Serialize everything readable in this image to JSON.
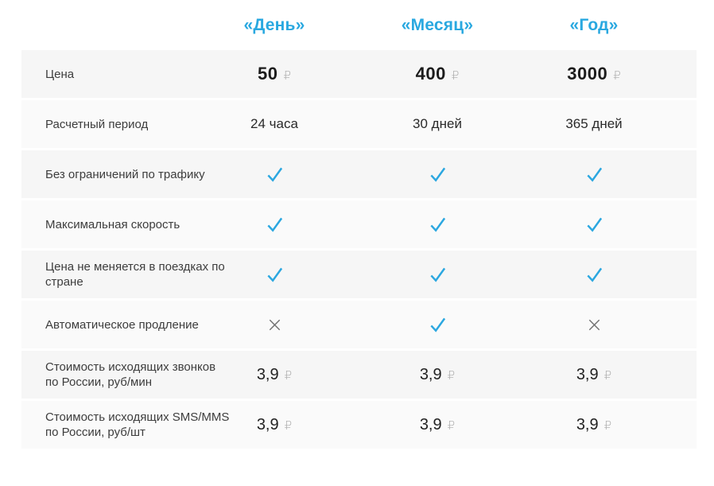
{
  "plans": {
    "columns": [
      {
        "label": "«День»"
      },
      {
        "label": "«Месяц»"
      },
      {
        "label": "«Год»"
      }
    ],
    "currency_symbol": "₽",
    "rows": [
      {
        "label": "Цена",
        "type": "price",
        "values": [
          "50",
          "400",
          "3000"
        ]
      },
      {
        "label": "Расчетный период",
        "type": "text",
        "values": [
          "24 часа",
          "30 дней",
          "365 дней"
        ]
      },
      {
        "label": "Без ограничений по трафику",
        "type": "bool",
        "values": [
          true,
          true,
          true
        ]
      },
      {
        "label": "Максимальная скорость",
        "type": "bool",
        "values": [
          true,
          true,
          true
        ]
      },
      {
        "label": "Цена не меняется в поездках по стране",
        "type": "bool",
        "values": [
          true,
          true,
          true
        ]
      },
      {
        "label": "Автоматическое продление",
        "type": "bool",
        "values": [
          false,
          true,
          false
        ]
      },
      {
        "label": "Стоимость исходящих звонков по России, руб/мин",
        "type": "fee",
        "values": [
          "3,9",
          "3,9",
          "3,9"
        ]
      },
      {
        "label": "Стоимость исходящих SMS/MMS по России, руб/шт",
        "type": "fee",
        "values": [
          "3,9",
          "3,9",
          "3,9"
        ]
      }
    ],
    "colors": {
      "accent": "#29a8e0",
      "check": "#2ba7e0",
      "cross": "#707070",
      "row_bg_a": "#f6f6f6",
      "row_bg_b": "#fafafa"
    }
  }
}
